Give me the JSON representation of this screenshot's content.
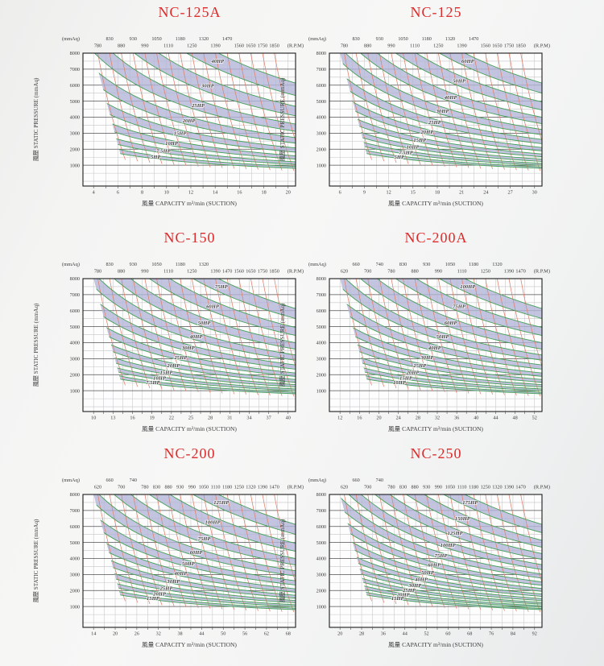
{
  "page": {
    "background_style": "light scanned gradient",
    "description": "Fan performance curve catalog page with six charts"
  },
  "colors": {
    "title": "#dd2b2b",
    "band_fill": "#b4b5d8",
    "rpm_line": "#e0806d",
    "hp_curve": "#44a058",
    "hp_label": "#2f9e50",
    "grid_minor": "#c6c6c8",
    "grid_major": "#515154",
    "plot_border": "#1c1c1c",
    "axis_text": "#3c3c3c",
    "plot_bg": "#fdfdfd"
  },
  "chart_data": [
    {
      "type": "line",
      "title": "NC-125A",
      "x_axis": {
        "label": "風量 CAPACITY m³/min (SUCTION)",
        "ticks": [
          4,
          6,
          8,
          10,
          12,
          14,
          16,
          18,
          20
        ]
      },
      "y_axis": {
        "label": "風壓 STATIC PRESSURE (mmAq)",
        "corner_unit": "(mmAq)",
        "ticks": [
          1000,
          2000,
          3000,
          4000,
          5000,
          6000,
          7000,
          8000
        ],
        "minor_step": 500,
        "range": [
          1000,
          8000
        ]
      },
      "rpm_axis": {
        "corner_unit": "(R.P.M)",
        "values": [
          780,
          830,
          880,
          930,
          990,
          1050,
          1110,
          1180,
          1250,
          1320,
          1390,
          1470,
          1560,
          1650,
          1750,
          1850
        ],
        "label_rows": [
          1,
          0,
          1,
          0,
          1,
          0,
          1,
          0,
          1,
          0,
          1,
          0,
          1,
          1,
          1,
          1
        ]
      },
      "hp_bands": [
        "5HP",
        "7.5HP",
        "10HP",
        "15HP",
        "20HP",
        "25HP",
        "30HP",
        "40HP"
      ]
    },
    {
      "type": "line",
      "title": "NC-125",
      "x_axis": {
        "label": "風量 CAPACITY m³/min (SUCTION)",
        "ticks": [
          6,
          9,
          12,
          15,
          18,
          21,
          24,
          27,
          30
        ]
      },
      "y_axis": {
        "label": "風壓 STATIC PRESSURE (mmAq)",
        "corner_unit": "(mmAq)",
        "ticks": [
          1000,
          2000,
          3000,
          4000,
          5000,
          6000,
          7000,
          8000
        ],
        "minor_step": 500,
        "range": [
          1000,
          8000
        ]
      },
      "rpm_axis": {
        "corner_unit": "(R.P.M)",
        "values": [
          780,
          830,
          880,
          930,
          990,
          1050,
          1110,
          1180,
          1250,
          1320,
          1390,
          1470,
          1560,
          1650,
          1750,
          1850
        ],
        "label_rows": [
          1,
          0,
          1,
          0,
          1,
          0,
          1,
          0,
          1,
          0,
          1,
          0,
          1,
          1,
          1,
          1
        ]
      },
      "hp_bands": [
        "5HP",
        "7.5HP",
        "10HP",
        "15HP",
        "20HP",
        "25HP",
        "30HP",
        "40HP",
        "50HP",
        "60HP"
      ]
    },
    {
      "type": "line",
      "title": "NC-150",
      "x_axis": {
        "label": "風量 CAPACITY m³/min (SUCTION)",
        "ticks": [
          10,
          13,
          16,
          19,
          22,
          25,
          28,
          31,
          34,
          37,
          40
        ]
      },
      "y_axis": {
        "label": "風壓 STATIC PRESSURE (mmAq)",
        "corner_unit": "(mmAq)",
        "ticks": [
          1000,
          2000,
          3000,
          4000,
          5000,
          6000,
          7000,
          8000
        ],
        "minor_step": 500,
        "range": [
          1000,
          8000
        ]
      },
      "rpm_axis": {
        "corner_unit": "(R.P.M)",
        "values": [
          780,
          830,
          880,
          930,
          990,
          1050,
          1110,
          1180,
          1250,
          1320,
          1390,
          1470,
          1560,
          1650,
          1750,
          1850
        ],
        "label_rows": [
          1,
          0,
          1,
          0,
          1,
          0,
          1,
          0,
          1,
          0,
          1,
          1,
          1,
          1,
          1,
          1
        ]
      },
      "hp_bands": [
        "7.5HP",
        "10HP",
        "15HP",
        "20HP",
        "25HP",
        "30HP",
        "40HP",
        "50HP",
        "60HP",
        "75HP"
      ]
    },
    {
      "type": "line",
      "title": "NC-200A",
      "x_axis": {
        "label": "風量 CAPACITY m³/min (SUCTION)",
        "ticks": [
          12,
          16,
          20,
          24,
          28,
          32,
          36,
          40,
          44,
          48,
          52
        ]
      },
      "y_axis": {
        "label": "風壓 STATIC PRESSURE (mmAq)",
        "corner_unit": "(mmAq)",
        "ticks": [
          1000,
          2000,
          3000,
          4000,
          5000,
          6000,
          7000,
          8000
        ],
        "minor_step": 500,
        "range": [
          1000,
          8000
        ]
      },
      "rpm_axis": {
        "corner_unit": "(R.P.M)",
        "values": [
          620,
          660,
          700,
          740,
          780,
          830,
          880,
          930,
          990,
          1050,
          1110,
          1180,
          1250,
          1320,
          1390,
          1470
        ],
        "label_rows": [
          1,
          0,
          1,
          0,
          1,
          0,
          1,
          0,
          1,
          0,
          1,
          0,
          1,
          0,
          1,
          1
        ]
      },
      "hp_bands": [
        "10HP",
        "15HP",
        "20HP",
        "25HP",
        "30HP",
        "40HP",
        "50HP",
        "60HP",
        "75HP",
        "100HP"
      ]
    },
    {
      "type": "line",
      "title": "NC-200",
      "x_axis": {
        "label": "風量 CAPACITY m³/min (SUCTION)",
        "ticks": [
          14,
          20,
          26,
          32,
          38,
          44,
          50,
          56,
          62,
          68
        ]
      },
      "y_axis": {
        "label": "風壓 STATIC PRESSURE (mmAq)",
        "corner_unit": "(mmAq)",
        "ticks": [
          1000,
          2000,
          3000,
          4000,
          5000,
          6000,
          7000,
          8000
        ],
        "minor_step": 500,
        "range": [
          1000,
          8000
        ]
      },
      "rpm_axis": {
        "corner_unit": "(R.P.M)",
        "values": [
          620,
          660,
          700,
          740,
          780,
          830,
          880,
          930,
          990,
          1050,
          1110,
          1180,
          1250,
          1320,
          1390,
          1470
        ],
        "label_rows": [
          1,
          0,
          1,
          0,
          1,
          1,
          1,
          1,
          1,
          1,
          1,
          1,
          1,
          1,
          1,
          1
        ]
      },
      "hp_bands": [
        "15HP",
        "20HP",
        "25HP",
        "30HP",
        "40HP",
        "50HP",
        "60HP",
        "75HP",
        "100HP",
        "125HP"
      ]
    },
    {
      "type": "line",
      "title": "NC-250",
      "x_axis": {
        "label": "風量 CAPACITY m³/min (SUCTION)",
        "ticks": [
          20,
          28,
          36,
          44,
          52,
          60,
          68,
          76,
          84,
          92
        ]
      },
      "y_axis": {
        "label": "風壓 STATIC PRESSURE (mmAq)",
        "corner_unit": "(mmAq)",
        "ticks": [
          1000,
          2000,
          3000,
          4000,
          5000,
          6000,
          7000,
          8000
        ],
        "minor_step": 500,
        "range": [
          1000,
          8000
        ]
      },
      "rpm_axis": {
        "corner_unit": "(R.P.M)",
        "values": [
          620,
          660,
          700,
          740,
          780,
          830,
          880,
          930,
          990,
          1050,
          1110,
          1180,
          1250,
          1320,
          1390,
          1470
        ],
        "label_rows": [
          1,
          0,
          1,
          0,
          1,
          1,
          1,
          1,
          1,
          1,
          1,
          1,
          1,
          1,
          1,
          1
        ]
      },
      "hp_bands": [
        "15HP",
        "20HP",
        "25HP",
        "30HP",
        "40HP",
        "50HP",
        "60HP",
        "75HP",
        "100HP",
        "125HP",
        "150HP",
        "175HP"
      ]
    }
  ]
}
